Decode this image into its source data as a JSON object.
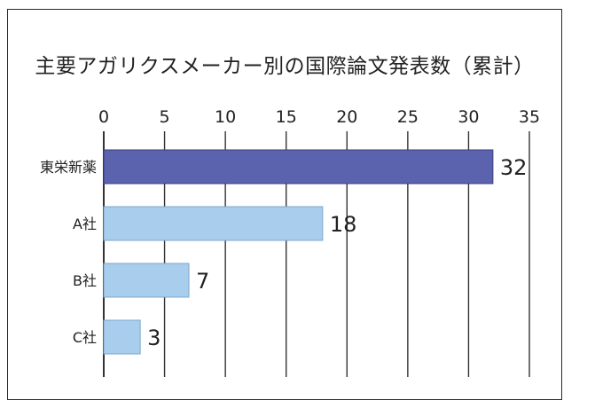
{
  "chart_data": {
    "type": "bar",
    "orientation": "horizontal",
    "title": "主要アガリクスメーカー別の国際論文発表数（累計）",
    "categories": [
      "東栄新薬",
      "A社",
      "B社",
      "C社"
    ],
    "values": [
      32,
      18,
      7,
      3
    ],
    "xlim": [
      0,
      35
    ],
    "xticks": [
      0,
      5,
      10,
      15,
      20,
      25,
      30,
      35
    ],
    "xtick_position": "top",
    "grid": true,
    "xlabel": "",
    "ylabel": "",
    "colors": [
      "#5b62ae",
      "#a9cdec",
      "#a9cdec",
      "#a9cdec"
    ],
    "bar_stroke": "#3a3f7c",
    "light_bar_stroke": "#7aa7cf"
  }
}
